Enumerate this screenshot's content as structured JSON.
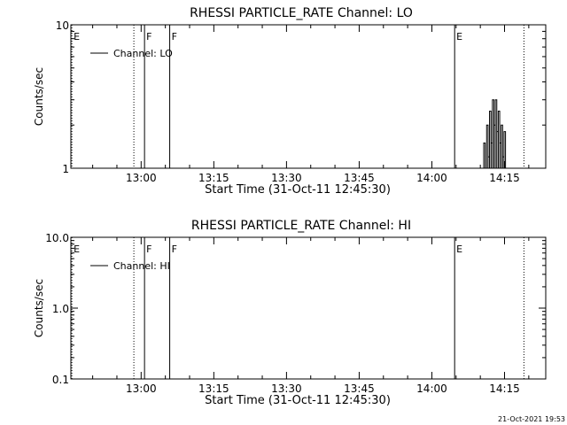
{
  "footer_timestamp": "21-Oct-2021 19:53",
  "chart_data": [
    {
      "type": "line",
      "title": "RHESSI PARTICLE_RATE Channel: LO",
      "xlabel": "Start Time (31-Oct-11 12:45:30)",
      "ylabel": "Counts/sec",
      "x_units": "minutes after 12:45:30",
      "xlim": [
        0,
        98
      ],
      "ylim": [
        1,
        10
      ],
      "y_scale": "log",
      "y_ticks": [
        {
          "value": 1,
          "label": "1"
        },
        {
          "value": 10,
          "label": "10"
        }
      ],
      "x_ticks": [
        {
          "value": 14.5,
          "label": "13:00"
        },
        {
          "value": 29.5,
          "label": "13:15"
        },
        {
          "value": 44.5,
          "label": "13:30"
        },
        {
          "value": 59.5,
          "label": "13:45"
        },
        {
          "value": 74.5,
          "label": "14:00"
        },
        {
          "value": 89.5,
          "label": "14:15"
        }
      ],
      "legend": {
        "position": "top-left",
        "entries": [
          "Channel: LO"
        ]
      },
      "event_markers": [
        {
          "x": 0.2,
          "label": "E",
          "style": "dotted"
        },
        {
          "x": 13.0,
          "label": "",
          "style": "dotted"
        },
        {
          "x": 15.2,
          "label": "F",
          "style": "solid"
        },
        {
          "x": 20.4,
          "label": "F",
          "style": "solid"
        },
        {
          "x": 79.2,
          "label": "E",
          "style": "solid"
        },
        {
          "x": 93.5,
          "label": "",
          "style": "dotted"
        }
      ],
      "series": [
        {
          "name": "Channel: LO",
          "x": [
            84.8,
            85.2,
            85.5,
            85.8,
            86.1,
            86.4,
            86.7,
            87.0,
            87.3,
            87.6,
            87.9,
            88.2,
            88.5,
            88.8,
            89.1,
            89.4,
            89.7,
            90.0
          ],
          "y": [
            1,
            1.5,
            1,
            2,
            1.2,
            2.5,
            1.5,
            3,
            2,
            3,
            1.8,
            2.5,
            1.5,
            2,
            1.2,
            1.8,
            1,
            1
          ]
        }
      ]
    },
    {
      "type": "line",
      "title": "RHESSI PARTICLE_RATE Channel: HI",
      "xlabel": "Start Time (31-Oct-11 12:45:30)",
      "ylabel": "Counts/sec",
      "x_units": "minutes after 12:45:30",
      "xlim": [
        0,
        98
      ],
      "ylim": [
        0.1,
        10
      ],
      "y_scale": "log",
      "y_ticks": [
        {
          "value": 0.1,
          "label": "0.1"
        },
        {
          "value": 1,
          "label": "1.0"
        },
        {
          "value": 10,
          "label": "10.0"
        }
      ],
      "x_ticks": [
        {
          "value": 14.5,
          "label": "13:00"
        },
        {
          "value": 29.5,
          "label": "13:15"
        },
        {
          "value": 44.5,
          "label": "13:30"
        },
        {
          "value": 59.5,
          "label": "13:45"
        },
        {
          "value": 74.5,
          "label": "14:00"
        },
        {
          "value": 89.5,
          "label": "14:15"
        }
      ],
      "legend": {
        "position": "top-left",
        "entries": [
          "Channel: HI"
        ]
      },
      "event_markers": [
        {
          "x": 0.2,
          "label": "E",
          "style": "dotted"
        },
        {
          "x": 13.0,
          "label": "",
          "style": "dotted"
        },
        {
          "x": 15.2,
          "label": "F",
          "style": "solid"
        },
        {
          "x": 20.4,
          "label": "F",
          "style": "solid"
        },
        {
          "x": 79.2,
          "label": "E",
          "style": "solid"
        },
        {
          "x": 93.5,
          "label": "",
          "style": "dotted"
        }
      ],
      "series": [
        {
          "name": "Channel: HI",
          "x": [],
          "y": []
        }
      ]
    }
  ]
}
